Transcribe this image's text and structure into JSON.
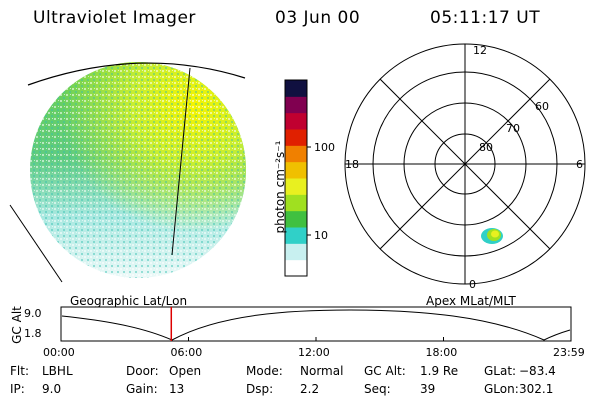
{
  "header": {
    "title": "Ultraviolet Imager",
    "date": "03 Jun 00",
    "time": "05:11:17 UT"
  },
  "colorbar": {
    "unit_label": "photon cm⁻²s⁻¹",
    "ticks": [
      "100",
      "10"
    ],
    "colors": [
      "#ffffff",
      "#c8f0f0",
      "#30d0c8",
      "#40c040",
      "#a0e020",
      "#e8f020",
      "#f0c000",
      "#f08000",
      "#e02000",
      "#c00030",
      "#800050",
      "#101040"
    ]
  },
  "polar_plot": {
    "labels": {
      "top": "12",
      "left": "18",
      "right": "6",
      "bottom": "0",
      "lat_60": "60",
      "lat_70": "70",
      "lat_80": "80"
    }
  },
  "panel_labels": {
    "geo": "Geographic Lat/Lon",
    "apex": "Apex MLat/MLT"
  },
  "altitude_strip": {
    "ylabel": "GC Alt",
    "y_top": "9.0",
    "y_bottom": "1.8",
    "x_ticks": [
      "00:00",
      "06:00",
      "12:00",
      "18:00",
      "23:59"
    ],
    "marker_time_hours": 5.19,
    "marker_color": "#dd0000"
  },
  "info": {
    "row1": [
      {
        "key": "Flt:",
        "value": "LBHL"
      },
      {
        "key": "Door:",
        "value": "Open"
      },
      {
        "key": "Mode:",
        "value": "Normal"
      },
      {
        "key": "GC Alt:",
        "value": "1.9 Re"
      },
      {
        "key": "GLat:",
        "value": "−83.4"
      }
    ],
    "row2": [
      {
        "key": "IP:",
        "value": "9.0"
      },
      {
        "key": "Gain:",
        "value": "13"
      },
      {
        "key": "Dsp:",
        "value": "2.2"
      },
      {
        "key": "Seq:",
        "value": "39"
      },
      {
        "key": "GLon:",
        "value": "302.1"
      }
    ]
  }
}
